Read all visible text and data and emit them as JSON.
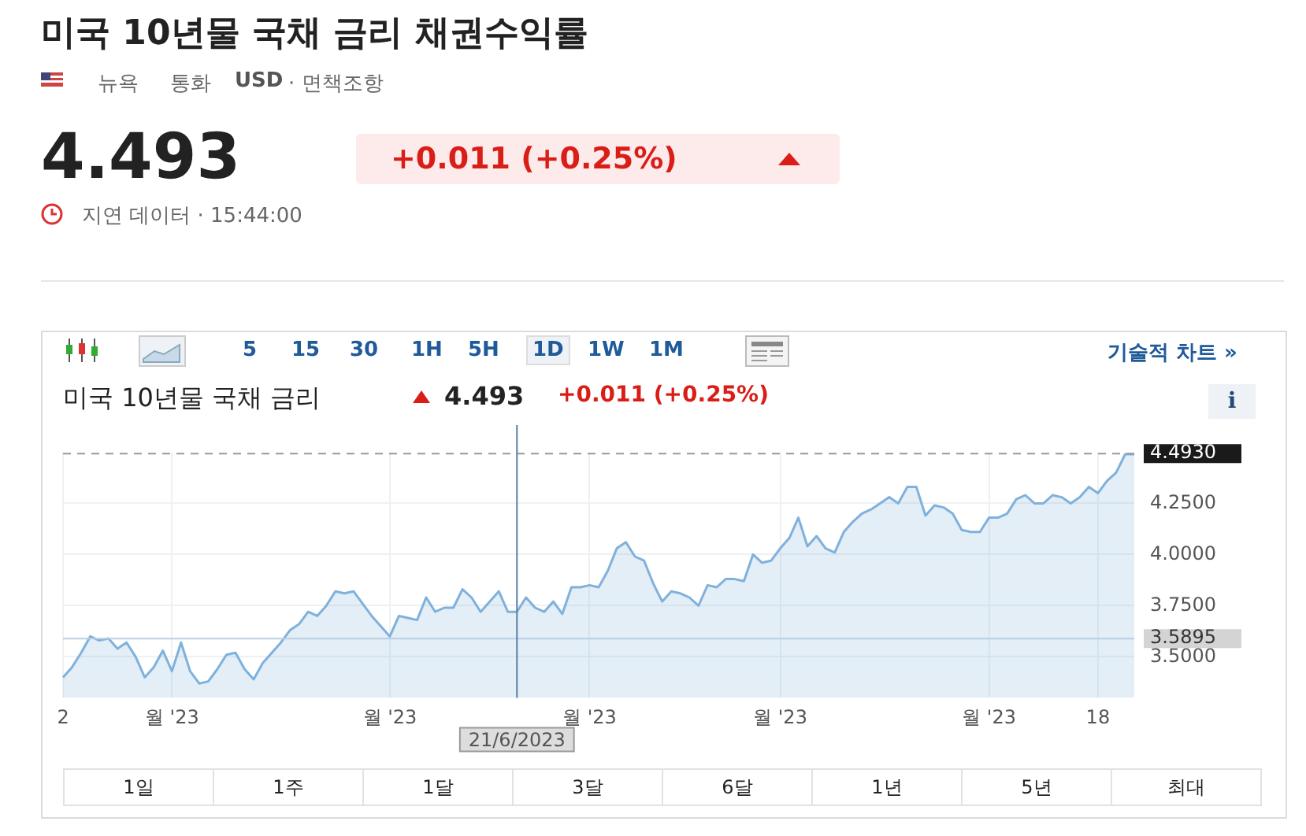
{
  "chart_data": {
    "type": "area",
    "title": "미국 10년물 국채 금리 채권수익률",
    "subtitle": "미국 10년물 국채 금리",
    "annotations": [
      "뉴욕",
      "통화",
      "USD",
      "· 면책조항",
      "4.493",
      "+0.011 (+0.25%)",
      "지연 데이터 · 15:44:00",
      "5",
      "15",
      "30",
      "1H",
      "5H",
      "1D",
      "1W",
      "1M",
      "기술적 차트 »",
      "4.493",
      "+0.011 (+0.25%)",
      "i",
      "1일",
      "1주",
      "1달",
      "3달",
      "6달",
      "1년",
      "5년",
      "최대"
    ],
    "categories": [
      "2",
      null,
      null,
      null,
      null,
      null,
      null,
      null,
      null,
      null,
      null,
      null,
      "월 '23",
      null,
      null,
      null,
      null,
      null,
      null,
      null,
      null,
      null,
      null,
      null,
      null,
      null,
      null,
      null,
      null,
      null,
      null,
      null,
      null,
      null,
      null,
      null,
      "월 '23",
      null,
      null,
      null,
      null,
      null,
      null,
      null,
      null,
      null,
      null,
      null,
      null,
      null,
      "21/6/2023",
      null,
      null,
      null,
      null,
      null,
      null,
      null,
      "월 '23",
      null,
      null,
      null,
      null,
      null,
      null,
      null,
      null,
      null,
      null,
      null,
      null,
      null,
      null,
      null,
      null,
      null,
      null,
      null,
      null,
      "월 '23",
      null,
      null,
      null,
      null,
      null,
      null,
      null,
      null,
      null,
      null,
      null,
      null,
      null,
      null,
      null,
      null,
      null,
      null,
      null,
      null,
      null,
      null,
      "월 '23",
      null,
      null,
      null,
      null,
      null,
      null,
      null,
      null,
      null,
      null,
      null,
      "18",
      null,
      null,
      null,
      null
    ],
    "series": [
      {
        "color": "#7fb1dc",
        "values": [
          3.4,
          3.45,
          3.52,
          3.6,
          3.58,
          3.59,
          3.54,
          3.57,
          3.5,
          3.4,
          3.45,
          3.53,
          3.43,
          3.57,
          3.43,
          3.37,
          3.38,
          3.44,
          3.51,
          3.52,
          3.44,
          3.39,
          3.47,
          3.52,
          3.57,
          3.63,
          3.66,
          3.72,
          3.7,
          3.75,
          3.82,
          3.81,
          3.82,
          3.76,
          3.7,
          3.65,
          3.6,
          3.7,
          3.69,
          3.68,
          3.79,
          3.72,
          3.74,
          3.74,
          3.83,
          3.79,
          3.72,
          3.77,
          3.82,
          3.72,
          3.72,
          3.79,
          3.74,
          3.72,
          3.77,
          3.71,
          3.84,
          3.84,
          3.85,
          3.84,
          3.92,
          4.03,
          4.06,
          3.99,
          3.97,
          3.86,
          3.77,
          3.82,
          3.81,
          3.79,
          3.75,
          3.85,
          3.84,
          3.88,
          3.88,
          3.87,
          4.0,
          3.96,
          3.97,
          4.03,
          4.08,
          4.18,
          4.04,
          4.09,
          4.03,
          4.01,
          4.11,
          4.16,
          4.2,
          4.22,
          4.25,
          4.28,
          4.25,
          4.33,
          4.33,
          4.19,
          4.24,
          4.23,
          4.2,
          4.12,
          4.11,
          4.11,
          4.18,
          4.18,
          4.2,
          4.27,
          4.29,
          4.25,
          4.25,
          4.29,
          4.28,
          4.25,
          4.28,
          4.33,
          4.3,
          4.36,
          4.4,
          4.49,
          4.49
        ]
      }
    ],
    "ylim": [
      3.3,
      4.5
    ],
    "yticks": [
      {
        "value": 3.5,
        "label": "3.5000"
      },
      {
        "value": 3.75,
        "label": "3.7500"
      },
      {
        "value": 4,
        "label": "4.0000"
      },
      {
        "value": 4.25,
        "label": "4.2500"
      }
    ],
    "grid": true,
    "ref_lines": [
      {
        "axis": "y",
        "value": 4.493,
        "label": "4.4930",
        "color": "#999999",
        "line_style": "dashed"
      },
      {
        "axis": "y",
        "value": 3.5895,
        "label": "3.5895",
        "color": "#b9cfe2"
      },
      {
        "axis": "x",
        "value": "21/6/2023",
        "color": "#5b7fa6"
      }
    ]
  }
}
